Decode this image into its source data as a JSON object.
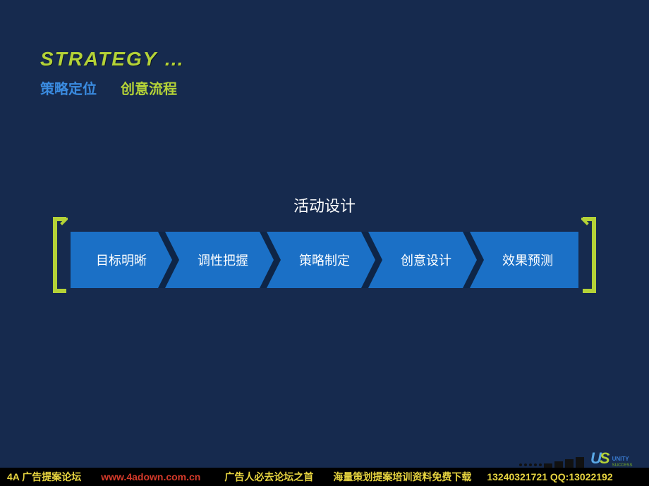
{
  "colors": {
    "bg": "#162a4e",
    "accent_green": "#b4d237",
    "accent_blue": "#3a8be0",
    "flow_blue": "#1b70c6",
    "flow_dark": "#0e2547",
    "text_white": "#ffffff",
    "footer_bg": "#000000",
    "footer_text": "#e8d540",
    "footer_red": "#d63a2a"
  },
  "header": {
    "title": "STRATEGY …",
    "subtitle_a": "策略定位",
    "subtitle_b": "创意流程"
  },
  "diagram": {
    "title": "活动设计",
    "type": "process-chevron",
    "steps": [
      {
        "label": "目标明晰"
      },
      {
        "label": "调性把握"
      },
      {
        "label": "策略制定"
      },
      {
        "label": "创意设计"
      },
      {
        "label": "效果预测"
      }
    ],
    "chevron_fill": "#1b70c6",
    "chevron_gap_color": "#0e2547",
    "label_color": "#ffffff",
    "label_fontsize": 18,
    "bracket_color": "#b4d237",
    "bracket_stroke": 6
  },
  "footer": {
    "prefix": "4A 广告提案论坛",
    "url": "www.4adown.com.cn",
    "mid": "广告人必去论坛之首",
    "tail": "海量策划提案培训资料免费下载",
    "phone": "13240321721",
    "qq_label": "QQ:",
    "qq": "13022192",
    "logo_unity": "UNITY",
    "logo_success": "success"
  }
}
